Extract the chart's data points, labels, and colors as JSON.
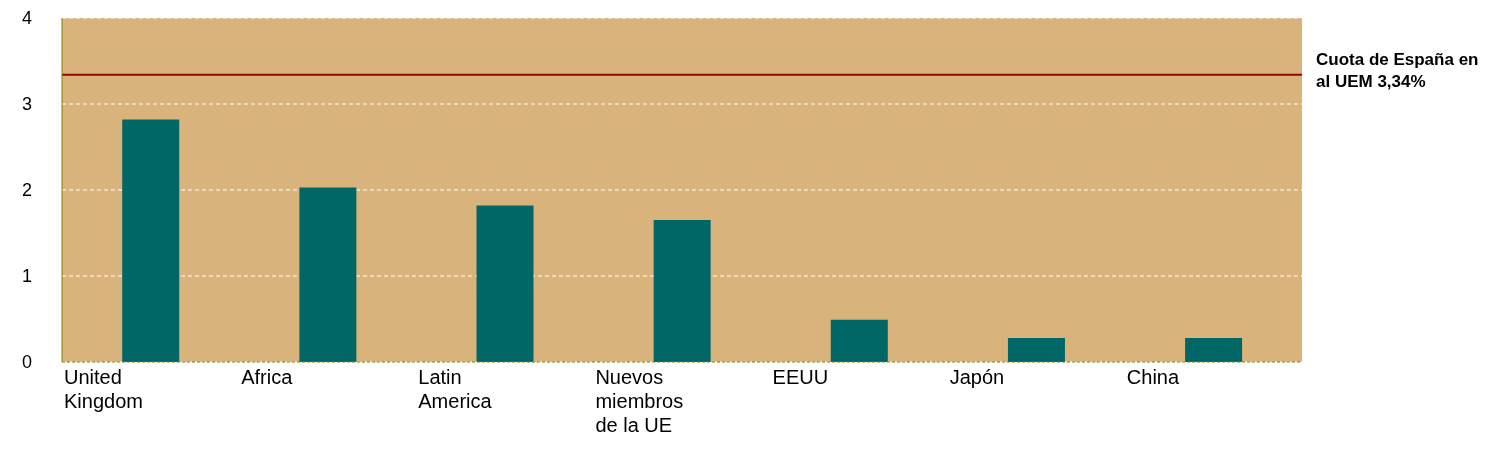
{
  "chart_data": {
    "type": "bar",
    "categories": [
      "United Kingdom",
      "Africa",
      "Latin America",
      "Nuevos miembros de la UE",
      "EEUU",
      "Japón",
      "China"
    ],
    "values": [
      2.82,
      2.03,
      1.82,
      1.65,
      0.49,
      0.28,
      0.28
    ],
    "color": "#006666",
    "ylim": [
      0,
      4
    ],
    "yticks": [
      0,
      1,
      2,
      3,
      4
    ],
    "grid": "y",
    "ref_lines": [
      {
        "axis": "y",
        "value": 3.34,
        "label": "Cuota de España en al UEM 3,34%",
        "color": "#990000"
      }
    ]
  }
}
